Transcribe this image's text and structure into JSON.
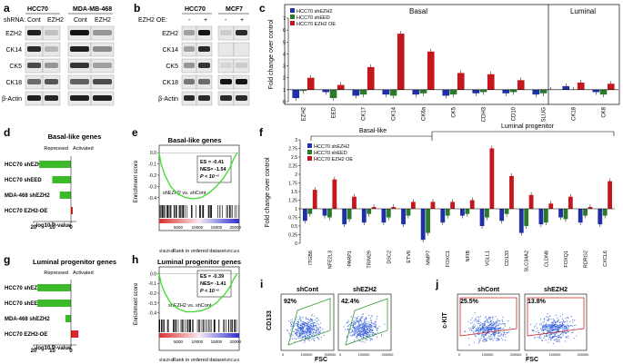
{
  "panels": {
    "a": {
      "letter": "a",
      "shrna_label": "shRNA:",
      "cell_lines": [
        "HCC70",
        "MDA-MB-468"
      ],
      "conditions": [
        "Cont",
        "EZH2",
        "Cont",
        "EZH2"
      ],
      "blots": [
        "EZH2",
        "CK14",
        "CK5",
        "CK18",
        "β-Actin"
      ]
    },
    "b": {
      "letter": "b",
      "oe_label": "EZH2 OE:",
      "cell_lines": [
        "HCC70",
        "MCF7"
      ],
      "conditions": [
        "-",
        "+",
        "-",
        "+"
      ],
      "blots": [
        "EZH2",
        "CK14",
        "CK5",
        "CK18",
        "β-Actin"
      ]
    },
    "c": {
      "letter": "c",
      "groups": [
        "Basal",
        "Luminal"
      ],
      "ylabel": "Fold change over control",
      "legend": [
        "HCC70 shEZH2",
        "HCC70 shEED",
        "HCC70 EZH2 OE"
      ],
      "ticks": [
        "0",
        "1",
        "2",
        "3",
        "4",
        "5",
        "6",
        "7"
      ]
    },
    "d": {
      "letter": "d",
      "title": "Basal-like genes",
      "repressed": "Repressed",
      "activated": "Activated",
      "rows": [
        "HCC70 shEZH2",
        "HCC70 shEED",
        "MDA-468 shEZH2",
        "HCC70 EZH2-OE"
      ],
      "ticks": [
        "20",
        "10",
        "0"
      ],
      "xlabel": "-log10 P-value"
    },
    "e": {
      "letter": "e",
      "title": "Basal-like genes",
      "ylabel": "Enrichment score",
      "es": "ES = -0.41",
      "nes": "NES= -1.54",
      "p": "P < 10⁻⁵",
      "comparison": "shEZH2 vs. shCont",
      "yticks": [
        "0.0",
        "-0.1",
        "-0.2",
        "-0.3",
        "-0.4"
      ],
      "xticks": [
        "5000",
        "10000",
        "15000",
        "20000"
      ],
      "xlabel": "Rank in ordered dataset",
      "left_end": "shEZH2",
      "right_end": "shCont"
    },
    "f": {
      "letter": "f",
      "groups": [
        "Basal-like",
        "Luminal progenitor"
      ],
      "ylabel": "Fold change over control",
      "legend": [
        "HCC70 shEZH2",
        "HCC70 shEED",
        "HCC70 EZH2 OE"
      ],
      "ticks": [
        "0",
        "0.25",
        "0.5",
        "0.75",
        "1",
        "1.25",
        "1.5",
        "1.75",
        "2",
        "2.25",
        "2.5",
        "2.75",
        "3"
      ]
    },
    "g": {
      "letter": "g",
      "title": "Luminal progenitor genes",
      "repressed": "Repressed",
      "activated": "Activated",
      "rows": [
        "HCC70 shEZH2",
        "HCC70 shEED",
        "MDA-468 shEZH2",
        "HCC70 EZH2-OE"
      ],
      "ticks": [
        "20",
        "10",
        "0"
      ],
      "xlabel": "-log10 P-value"
    },
    "h": {
      "letter": "h",
      "title": "Luminal progenitor genes",
      "ylabel": "Enrichment score",
      "es": "ES = -0.39",
      "nes": "NES= -1.41",
      "p": "P < 10⁻⁵",
      "comparison": "shEZH2 vs. shCont",
      "yticks": [
        "0.0",
        "-0.1",
        "-0.2",
        "-0.3",
        "-0.4"
      ],
      "xticks": [
        "5000",
        "10000",
        "15000",
        "20000"
      ],
      "xlabel": "Rank in ordered dataset",
      "left_end": "shEZH2",
      "right_end": "shCont"
    },
    "i": {
      "letter": "i",
      "ylabel": "CD133",
      "xlabel": "FSC",
      "plots": [
        {
          "title": "shCont",
          "pct": "92%"
        },
        {
          "title": "shEZH2",
          "pct": "42.4%"
        }
      ],
      "xticks": [
        "0",
        "100000",
        "200000"
      ]
    },
    "j": {
      "letter": "j",
      "ylabel": "c-KIT",
      "xlabel": "FSC",
      "plots": [
        {
          "title": "shCont",
          "pct": "25.5%"
        },
        {
          "title": "shEZH2",
          "pct": "13.8%"
        }
      ],
      "xticks": [
        "0",
        "100000",
        "200000"
      ]
    }
  },
  "colors": {
    "shEZH2": "#1f2fa8",
    "shEED": "#2a7a2a",
    "ezh2_oe": "#c4161c",
    "gsea_curve": "#3ddb2c",
    "bar_green": "#3cba2a",
    "bar_red": "#d9262b",
    "gate_green": "#3a9a3a",
    "gate_red": "#c42828",
    "flow_blue": "#2d5bd8"
  },
  "chart_data": [
    {
      "panel": "c",
      "type": "bar",
      "categories": [
        "EZH2",
        "EED",
        "CK17",
        "CK14",
        "CK6a",
        "CK5",
        "CDH3",
        "CD10",
        "SLUG",
        "CK18",
        "CK8"
      ],
      "series": [
        {
          "name": "HCC70 shEZH2",
          "values": [
            0.3,
            0.8,
            0.5,
            0.6,
            0.6,
            0.5,
            0.7,
            0.7,
            0.6,
            1.3,
            0.8
          ]
        },
        {
          "name": "HCC70 shEED",
          "values": [
            0.9,
            0.3,
            0.6,
            0.5,
            0.7,
            0.6,
            0.8,
            0.8,
            0.7,
            1.0,
            0.6
          ]
        },
        {
          "name": "HCC70 EZH2 OE",
          "values": [
            2.0,
            1.4,
            2.9,
            5.7,
            4.2,
            2.4,
            2.3,
            1.8,
            1.0,
            1.6,
            1.5
          ]
        }
      ],
      "baseline": 1,
      "ylim": [
        0,
        7
      ],
      "ylabel": "Fold change over control"
    },
    {
      "panel": "f",
      "type": "bar",
      "categories": [
        "ITGB6",
        "NFE2L3",
        "PARP1",
        "TRIM29",
        "DSC2",
        "ETV6",
        "MMP7",
        "FOXC1",
        "NFIB",
        "VGLL1",
        "CD133",
        "SLC34A2",
        "CLDN8",
        "FOXQ1",
        "RDRG2",
        "CXCL6"
      ],
      "series": [
        {
          "name": "HCC70 shEZH2",
          "values": [
            0.65,
            0.8,
            0.55,
            0.6,
            0.6,
            0.55,
            0.1,
            0.6,
            0.8,
            0.5,
            0.65,
            0.3,
            0.55,
            0.75,
            0.6,
            0.55
          ]
        },
        {
          "name": "HCC70 shEED",
          "values": [
            0.85,
            0.75,
            0.7,
            0.85,
            0.75,
            0.8,
            0.3,
            0.8,
            0.85,
            0.75,
            0.85,
            0.5,
            0.6,
            0.7,
            0.8,
            0.8
          ]
        },
        {
          "name": "HCC70 EZH2 OE",
          "values": [
            1.55,
            1.85,
            1.35,
            1.05,
            1.05,
            1.2,
            1.2,
            1.2,
            1.25,
            2.75,
            1.95,
            1.4,
            1.15,
            1.35,
            1.05,
            1.8
          ]
        }
      ],
      "baseline": 1,
      "ylim": [
        0,
        3
      ],
      "ylabel": "Fold change over control"
    },
    {
      "panel": "d",
      "type": "bar",
      "orientation": "horizontal",
      "categories": [
        "HCC70 shEZH2",
        "HCC70 shEED",
        "MDA-468 shEZH2",
        "HCC70 EZH2-OE"
      ],
      "values": [
        -17,
        -10,
        -6,
        1
      ],
      "xlabel": "-log10 P-value",
      "xlim": [
        -20,
        3
      ]
    },
    {
      "panel": "g",
      "type": "bar",
      "orientation": "horizontal",
      "categories": [
        "HCC70 shEZH2",
        "HCC70 shEED",
        "MDA-468 shEZH2",
        "HCC70 EZH2-OE"
      ],
      "values": [
        -18,
        -18,
        -3,
        4
      ],
      "xlabel": "-log10 P-value",
      "xlim": [
        -20,
        5
      ]
    },
    {
      "panel": "e",
      "type": "line",
      "x": [
        0,
        500,
        1500,
        3000,
        5000,
        7000,
        9000,
        11000,
        13000,
        15000,
        17000,
        18500,
        19500,
        20500
      ],
      "y": [
        0.0,
        -0.1,
        -0.2,
        -0.3,
        -0.37,
        -0.4,
        -0.41,
        -0.4,
        -0.36,
        -0.3,
        -0.22,
        -0.14,
        -0.06,
        0.0
      ],
      "xlim": [
        0,
        21000
      ],
      "ylim": [
        -0.45,
        0.05
      ]
    },
    {
      "panel": "h",
      "type": "line",
      "x": [
        0,
        500,
        1500,
        3000,
        5000,
        7000,
        9000,
        11000,
        13000,
        15000,
        17000,
        18500,
        19500,
        20500
      ],
      "y": [
        0.0,
        -0.1,
        -0.2,
        -0.3,
        -0.36,
        -0.39,
        -0.39,
        -0.38,
        -0.35,
        -0.3,
        -0.22,
        -0.14,
        -0.06,
        0.0
      ],
      "xlim": [
        0,
        21000
      ],
      "ylim": [
        -0.45,
        0.05
      ]
    }
  ]
}
